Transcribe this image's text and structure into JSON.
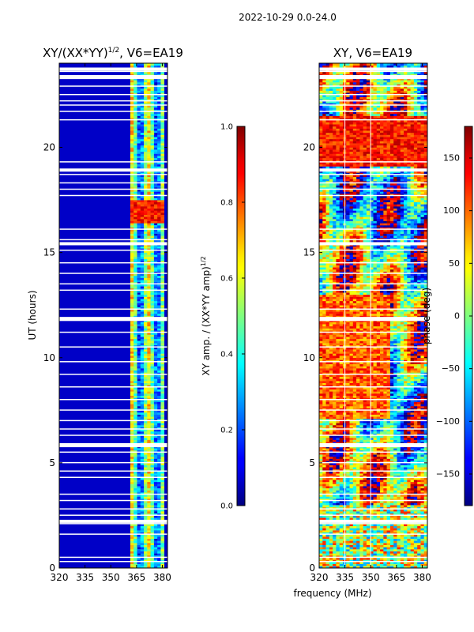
{
  "suptitle": "2022-10-29 0.0-24.0",
  "shared": {
    "xlabel": "frequency (MHz)",
    "ylabel": "UT (hours)"
  },
  "chart_data": [
    {
      "type": "heatmap",
      "title_main": "XY/(XX*YY)",
      "title_sup": "1/2",
      "title_rest": ", V6=EA19",
      "x_ticks": [
        320,
        335,
        350,
        365,
        380
      ],
      "x_range": [
        320,
        383
      ],
      "y_ticks": [
        0,
        5,
        10,
        15,
        20
      ],
      "y_range": [
        0,
        24
      ],
      "colorbar": {
        "label_main": "XY amp. / (XX*YY amp)",
        "label_sup": "1/2",
        "ticks": [
          0.0,
          0.2,
          0.4,
          0.6,
          0.8,
          1.0
        ],
        "tick_labels": [
          "0.0",
          "0.2",
          "0.4",
          "0.6",
          "0.8",
          "1.0"
        ],
        "range": [
          0,
          1
        ],
        "colormap": "jet"
      }
    },
    {
      "type": "heatmap",
      "title": "XY, V6=EA19",
      "x_ticks": [
        320,
        335,
        350,
        365,
        380
      ],
      "x_range": [
        320,
        383
      ],
      "y_ticks": [
        0,
        5,
        10,
        15,
        20
      ],
      "y_range": [
        0,
        24
      ],
      "colorbar": {
        "label": "phase (deg)",
        "ticks": [
          -150,
          -100,
          -50,
          0,
          50,
          100,
          150
        ],
        "tick_labels": [
          "−150",
          "−100",
          "−50",
          "0",
          "50",
          "100",
          "150"
        ],
        "range": [
          -180,
          180
        ],
        "colormap": "jet"
      }
    }
  ]
}
